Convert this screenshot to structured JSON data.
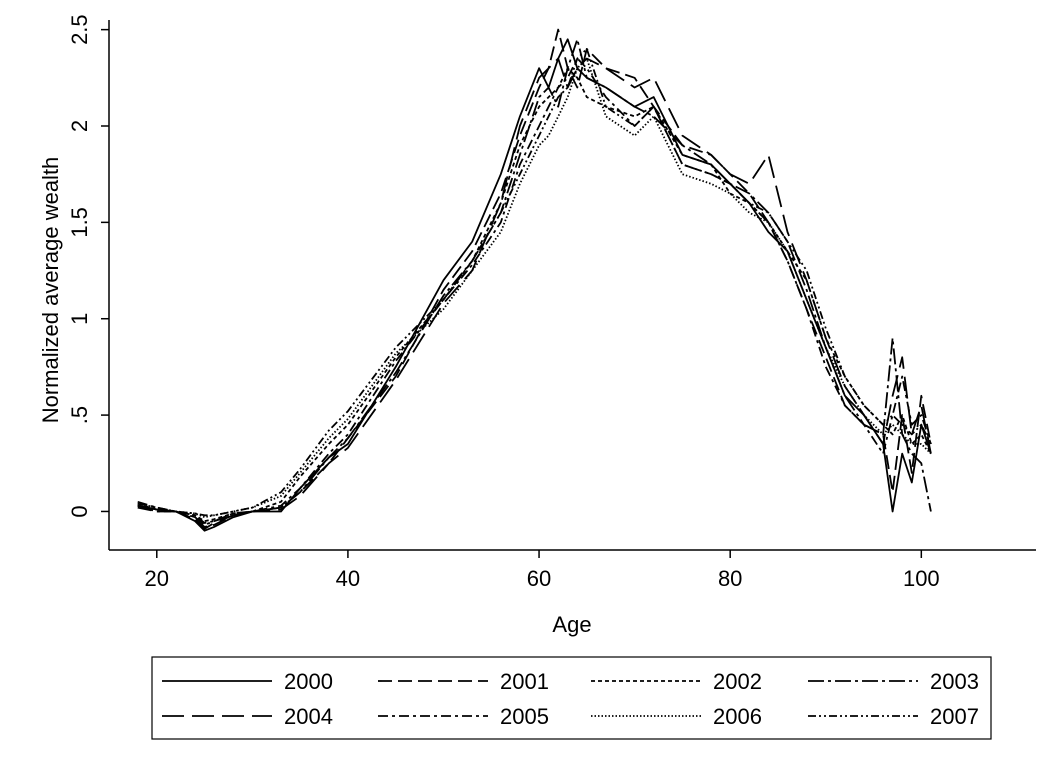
{
  "chart_data": {
    "type": "line",
    "title": "",
    "xlabel": "Age",
    "ylabel": "Normalized average wealth",
    "xlim": [
      15,
      112
    ],
    "ylim": [
      -0.2,
      2.55
    ],
    "xticks": [
      20,
      40,
      60,
      80,
      100
    ],
    "xtick_labels": [
      "20",
      "40",
      "60",
      "80",
      "100"
    ],
    "yticks": [
      0,
      0.5,
      1,
      1.5,
      2,
      2.5
    ],
    "ytick_labels": [
      "0",
      ".5",
      "1",
      "1.5",
      "2",
      "2.5"
    ],
    "grid": false,
    "legend_position": "bottom",
    "line_color": "#000000",
    "series": [
      {
        "name": "2000",
        "dash": "solid",
        "x": [
          18,
          20,
          22,
          24,
          25,
          26,
          28,
          30,
          33,
          35,
          38,
          40,
          45,
          50,
          53,
          56,
          58,
          60,
          61,
          62,
          63,
          64,
          65,
          67,
          70,
          72,
          75,
          78,
          80,
          82,
          84,
          86,
          88,
          90,
          92,
          94,
          96,
          97,
          98,
          99,
          100,
          101
        ],
        "y": [
          0.03,
          0.01,
          0.0,
          -0.05,
          -0.1,
          -0.08,
          -0.03,
          0.0,
          0.0,
          0.12,
          0.28,
          0.35,
          0.75,
          1.2,
          1.4,
          1.75,
          2.05,
          2.3,
          2.2,
          2.35,
          2.45,
          2.3,
          2.25,
          2.2,
          2.1,
          2.15,
          1.85,
          1.8,
          1.7,
          1.6,
          1.45,
          1.35,
          1.1,
          0.85,
          0.6,
          0.5,
          0.35,
          0.0,
          0.3,
          0.15,
          0.45,
          0.3
        ]
      },
      {
        "name": "2001",
        "dash": "long",
        "x": [
          18,
          20,
          22,
          24,
          25,
          26,
          28,
          30,
          33,
          35,
          38,
          40,
          45,
          50,
          53,
          56,
          58,
          60,
          61,
          62,
          63,
          64,
          65,
          67,
          70,
          72,
          75,
          78,
          80,
          82,
          84,
          86,
          88,
          90,
          92,
          94,
          96,
          97,
          98,
          99,
          100,
          101
        ],
        "y": [
          0.02,
          0.0,
          0.0,
          -0.04,
          -0.08,
          -0.07,
          -0.02,
          0.0,
          0.02,
          0.1,
          0.25,
          0.38,
          0.7,
          1.15,
          1.35,
          1.65,
          1.95,
          2.2,
          2.3,
          2.5,
          2.3,
          2.2,
          2.4,
          2.3,
          2.25,
          2.1,
          1.9,
          1.85,
          1.75,
          1.65,
          1.5,
          1.3,
          1.05,
          0.8,
          0.55,
          0.45,
          0.4,
          0.1,
          0.5,
          0.2,
          0.6,
          0.35
        ]
      },
      {
        "name": "2002",
        "dash": "short",
        "x": [
          18,
          20,
          22,
          24,
          25,
          26,
          28,
          30,
          33,
          35,
          38,
          40,
          45,
          50,
          53,
          56,
          58,
          60,
          61,
          62,
          63,
          64,
          65,
          67,
          70,
          72,
          75,
          78,
          80,
          82,
          84,
          86,
          88,
          90,
          92,
          94,
          96,
          97,
          98,
          99,
          100,
          101
        ],
        "y": [
          0.04,
          0.01,
          0.0,
          -0.02,
          -0.05,
          -0.04,
          -0.01,
          0.0,
          0.05,
          0.18,
          0.35,
          0.45,
          0.8,
          1.1,
          1.3,
          1.6,
          1.9,
          2.1,
          2.15,
          2.2,
          2.3,
          2.25,
          2.15,
          2.1,
          2.05,
          2.1,
          1.85,
          1.8,
          1.65,
          1.6,
          1.5,
          1.35,
          1.2,
          0.9,
          0.7,
          0.55,
          0.45,
          0.4,
          0.5,
          0.35,
          0.4,
          0.3
        ]
      },
      {
        "name": "2003",
        "dash": "dashdot",
        "x": [
          18,
          20,
          22,
          24,
          25,
          26,
          28,
          30,
          33,
          35,
          38,
          40,
          45,
          50,
          53,
          56,
          58,
          60,
          61,
          62,
          63,
          64,
          65,
          67,
          70,
          72,
          75,
          78,
          80,
          82,
          84,
          86,
          88,
          90,
          92,
          94,
          96,
          97,
          98,
          99,
          100,
          101
        ],
        "y": [
          0.03,
          0.0,
          0.0,
          -0.03,
          -0.07,
          -0.05,
          -0.02,
          0.0,
          0.02,
          0.1,
          0.28,
          0.38,
          0.72,
          1.12,
          1.3,
          1.55,
          1.85,
          2.15,
          2.2,
          2.1,
          2.3,
          2.45,
          2.25,
          2.2,
          2.1,
          2.05,
          1.9,
          1.8,
          1.7,
          1.65,
          1.55,
          1.4,
          1.15,
          0.85,
          0.6,
          0.45,
          0.4,
          0.9,
          0.4,
          0.3,
          0.25,
          0.0
        ]
      },
      {
        "name": "2004",
        "dash": "longlong",
        "x": [
          18,
          20,
          22,
          24,
          25,
          26,
          28,
          30,
          33,
          35,
          38,
          40,
          45,
          50,
          53,
          56,
          58,
          60,
          61,
          62,
          63,
          64,
          65,
          67,
          70,
          72,
          75,
          78,
          80,
          82,
          84,
          86,
          88,
          90,
          92,
          94,
          96,
          97,
          98,
          99,
          100,
          101
        ],
        "y": [
          0.03,
          0.01,
          0.0,
          -0.04,
          -0.09,
          -0.06,
          -0.02,
          0.0,
          0.01,
          0.08,
          0.25,
          0.33,
          0.68,
          1.08,
          1.25,
          1.6,
          2.0,
          2.25,
          2.3,
          2.35,
          2.2,
          2.3,
          2.35,
          2.3,
          2.2,
          2.25,
          1.95,
          1.85,
          1.75,
          1.7,
          1.85,
          1.45,
          1.2,
          0.9,
          0.65,
          0.5,
          0.35,
          0.6,
          0.8,
          0.4,
          0.55,
          0.3
        ]
      },
      {
        "name": "2005",
        "dash": "dashdotlong",
        "x": [
          18,
          20,
          22,
          24,
          25,
          26,
          28,
          30,
          33,
          35,
          38,
          40,
          45,
          50,
          53,
          56,
          58,
          60,
          61,
          62,
          63,
          64,
          65,
          67,
          70,
          72,
          75,
          78,
          80,
          82,
          84,
          86,
          88,
          90,
          92,
          94,
          96,
          97,
          98,
          99,
          100,
          101
        ],
        "y": [
          0.05,
          0.02,
          0.0,
          -0.02,
          -0.06,
          -0.05,
          -0.01,
          0.0,
          0.03,
          0.12,
          0.3,
          0.4,
          0.78,
          1.1,
          1.28,
          1.5,
          1.8,
          2.0,
          2.1,
          2.2,
          2.25,
          2.35,
          2.3,
          2.15,
          2.0,
          2.1,
          1.8,
          1.75,
          1.7,
          1.6,
          1.5,
          1.3,
          1.05,
          0.75,
          0.55,
          0.45,
          0.3,
          0.5,
          0.7,
          0.45,
          0.5,
          0.35
        ]
      },
      {
        "name": "2006",
        "dash": "dotted",
        "x": [
          18,
          20,
          22,
          24,
          25,
          26,
          28,
          30,
          33,
          35,
          38,
          40,
          45,
          50,
          53,
          56,
          58,
          60,
          61,
          62,
          63,
          64,
          65,
          67,
          70,
          72,
          75,
          78,
          80,
          82,
          84,
          86,
          88,
          90,
          92,
          94,
          96,
          97,
          98,
          99,
          100,
          101
        ],
        "y": [
          0.03,
          0.01,
          0.0,
          -0.01,
          -0.03,
          -0.02,
          0.0,
          0.02,
          0.08,
          0.2,
          0.38,
          0.48,
          0.82,
          1.05,
          1.25,
          1.45,
          1.7,
          1.9,
          1.95,
          2.05,
          2.15,
          2.3,
          2.35,
          2.05,
          1.95,
          2.05,
          1.75,
          1.7,
          1.65,
          1.55,
          1.5,
          1.35,
          1.1,
          0.85,
          0.65,
          0.5,
          0.4,
          0.45,
          0.4,
          0.35,
          0.35,
          0.3
        ]
      },
      {
        "name": "2007",
        "dash": "dashdotdot",
        "x": [
          18,
          20,
          22,
          24,
          25,
          26,
          28,
          30,
          33,
          35,
          38,
          40,
          45,
          50,
          53,
          56,
          58,
          60,
          61,
          62,
          63,
          64,
          65,
          67,
          70,
          72,
          75,
          78,
          80,
          82,
          84,
          86,
          88,
          90,
          92,
          94,
          96,
          97,
          98,
          99,
          100,
          101
        ],
        "y": [
          0.04,
          0.02,
          0.0,
          -0.01,
          -0.02,
          -0.02,
          0.0,
          0.02,
          0.1,
          0.22,
          0.42,
          0.52,
          0.85,
          1.1,
          1.3,
          1.55,
          1.75,
          1.95,
          2.05,
          2.15,
          2.2,
          2.35,
          2.4,
          2.1,
          2.0,
          2.1,
          1.8,
          1.75,
          1.7,
          1.6,
          1.55,
          1.4,
          1.25,
          0.95,
          0.7,
          0.55,
          0.45,
          0.5,
          0.45,
          0.4,
          0.45,
          0.35
        ]
      }
    ]
  }
}
